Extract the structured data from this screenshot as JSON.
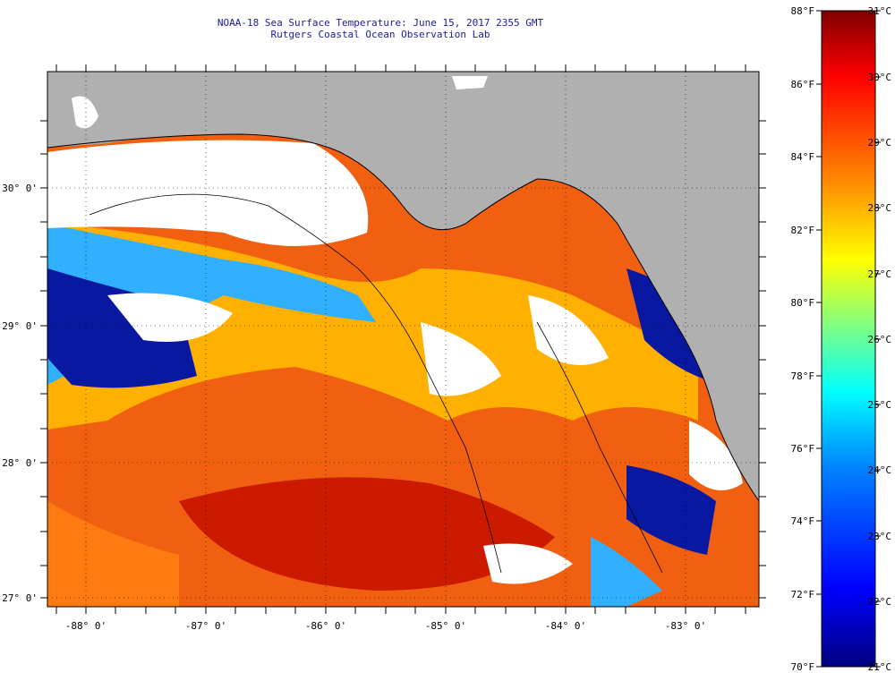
{
  "title": {
    "line1": "NOAA-18 Sea Surface Temperature:  June 15, 2017 2355 GMT",
    "line2": "Rutgers Coastal Ocean Observation Lab"
  },
  "map": {
    "lon_labels": [
      "-88° 0'",
      "-87° 0'",
      "-86° 0'",
      "-85° 0'",
      "-84° 0'",
      "-83° 0'"
    ],
    "lat_labels": [
      "30° 0'",
      "29° 0'",
      "28° 0'",
      "27° 0'"
    ],
    "land_color": "#b0b0b0",
    "cloud_color": "#ffffff"
  },
  "colorbar": {
    "fahrenheit_labels": [
      "88°F",
      "86°F",
      "84°F",
      "82°F",
      "80°F",
      "78°F",
      "76°F",
      "74°F",
      "72°F",
      "70°F"
    ],
    "celsius_labels": [
      "31°C",
      "30°C",
      "29°C",
      "28°C",
      "27°C",
      "26°C",
      "25°C",
      "24°C",
      "23°C",
      "22°C",
      "21°C"
    ],
    "colors": [
      "#000080",
      "#0000ff",
      "#0080ff",
      "#00ffff",
      "#80ff80",
      "#ffff00",
      "#ff8000",
      "#ff0000",
      "#800000"
    ]
  }
}
